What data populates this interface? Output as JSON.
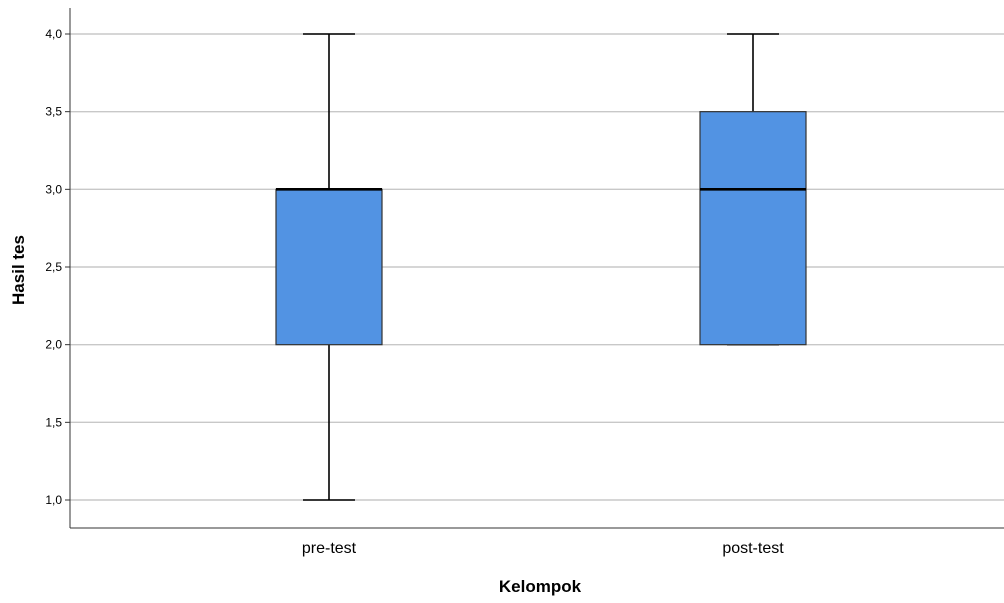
{
  "chart_data": {
    "type": "boxplot",
    "xlabel": "Kelompok",
    "ylabel": "Hasil tes",
    "ylim": [
      0.85,
      4.1
    ],
    "yticks": [
      1.0,
      1.5,
      2.0,
      2.5,
      3.0,
      3.5,
      4.0
    ],
    "ytick_labels": [
      "1,0",
      "1,5",
      "2,0",
      "2,5",
      "3,0",
      "3,5",
      "4,0"
    ],
    "grid": true,
    "categories": [
      "pre-test",
      "post-test"
    ],
    "boxes": [
      {
        "category": "pre-test",
        "min": 1.0,
        "q1": 2.0,
        "median": 3.0,
        "q3": 3.0,
        "max": 4.0
      },
      {
        "category": "post-test",
        "min": 2.0,
        "q1": 2.0,
        "median": 3.0,
        "q3": 3.5,
        "max": 4.0
      }
    ],
    "colors": {
      "box_fill": "#5293e3",
      "box_stroke": "#333333",
      "grid": "#c8c8c8",
      "axis": "#333333",
      "text": "#000000"
    }
  }
}
